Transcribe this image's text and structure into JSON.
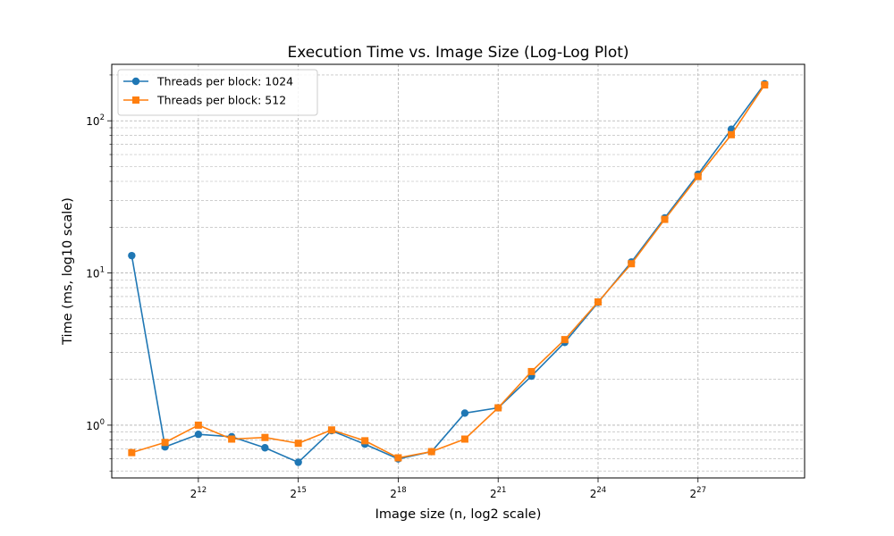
{
  "chart_data": {
    "type": "line",
    "title": "Execution Time vs. Image Size (Log-Log Plot)",
    "xlabel": "Image size (n, log2 scale)",
    "ylabel": "Time (ms, log10 scale)",
    "x_scale": "log2",
    "y_scale": "log10",
    "x_exponents": [
      10,
      11,
      12,
      13,
      14,
      15,
      16,
      17,
      18,
      19,
      20,
      21,
      22,
      23,
      24,
      25,
      26,
      27,
      28,
      29
    ],
    "xlim_exponents": [
      9.4,
      30.2
    ],
    "ylim": [
      0.45,
      235
    ],
    "x_ticks": [
      {
        "exp": 12,
        "base": "2",
        "sup": "12"
      },
      {
        "exp": 15,
        "base": "2",
        "sup": "15"
      },
      {
        "exp": 18,
        "base": "2",
        "sup": "18"
      },
      {
        "exp": 21,
        "base": "2",
        "sup": "21"
      },
      {
        "exp": 24,
        "base": "2",
        "sup": "24"
      },
      {
        "exp": 27,
        "base": "2",
        "sup": "27"
      }
    ],
    "y_ticks": [
      {
        "value": 1,
        "base": "10",
        "sup": "0"
      },
      {
        "value": 10,
        "base": "10",
        "sup": "1"
      },
      {
        "value": 100,
        "base": "10",
        "sup": "2"
      }
    ],
    "grid": true,
    "legend_position": "upper-left",
    "series": [
      {
        "name": "Threads per block: 1024",
        "color": "#1f77b4",
        "marker": "circle",
        "values": [
          13.0,
          0.72,
          0.87,
          0.84,
          0.71,
          0.57,
          0.92,
          0.75,
          0.6,
          0.67,
          1.2,
          1.3,
          2.1,
          3.5,
          6.4,
          11.8,
          23.0,
          44.5,
          88.0,
          175.0
        ]
      },
      {
        "name": "Threads per block: 512",
        "color": "#ff7f0e",
        "marker": "square",
        "values": [
          0.66,
          0.77,
          1.0,
          0.81,
          0.83,
          0.76,
          0.93,
          0.79,
          0.61,
          0.67,
          0.81,
          1.3,
          2.25,
          3.65,
          6.45,
          11.5,
          22.5,
          43.0,
          81.0,
          172.0
        ]
      }
    ]
  }
}
